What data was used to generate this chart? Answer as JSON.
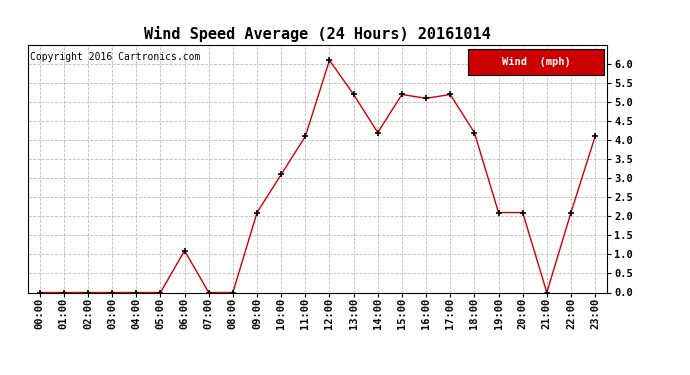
{
  "title": "Wind Speed Average (24 Hours) 20161014",
  "copyright": "Copyright 2016 Cartronics.com",
  "legend_label": "Wind  (mph)",
  "legend_bg": "#cc0000",
  "legend_fg": "#ffffff",
  "x_labels": [
    "00:00",
    "01:00",
    "02:00",
    "03:00",
    "04:00",
    "05:00",
    "06:00",
    "07:00",
    "08:00",
    "09:00",
    "10:00",
    "11:00",
    "12:00",
    "13:00",
    "14:00",
    "15:00",
    "16:00",
    "17:00",
    "18:00",
    "19:00",
    "20:00",
    "21:00",
    "22:00",
    "23:00"
  ],
  "y_values": [
    0.0,
    0.0,
    0.0,
    0.0,
    0.0,
    0.0,
    1.1,
    0.0,
    0.0,
    2.1,
    3.1,
    4.1,
    6.1,
    5.2,
    4.2,
    5.2,
    5.1,
    5.2,
    4.2,
    2.1,
    2.1,
    0.0,
    2.1,
    4.1
  ],
  "ylim": [
    0.0,
    6.5
  ],
  "yticks": [
    0.0,
    0.5,
    1.0,
    1.5,
    2.0,
    2.5,
    3.0,
    3.5,
    4.0,
    4.5,
    5.0,
    5.5,
    6.0
  ],
  "line_color": "#cc0000",
  "marker_color": "#000000",
  "grid_color": "#bbbbbb",
  "bg_color": "#ffffff",
  "title_fontsize": 11,
  "copyright_fontsize": 7,
  "tick_fontsize": 7.5,
  "legend_fontsize": 7.5
}
